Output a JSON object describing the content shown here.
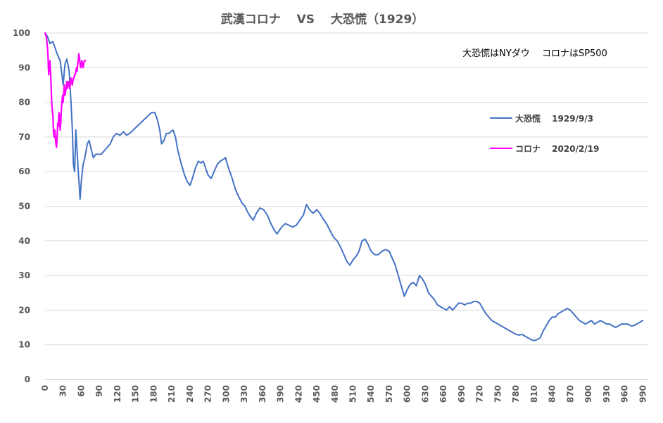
{
  "chart_data": {
    "type": "line",
    "title": "武漢コロナ　 VS　 大恐慌（1929）",
    "annotation": "大恐慌はNYダウ　 コロナはSP500",
    "xlabel": "",
    "ylabel": "",
    "xlim": [
      0,
      999
    ],
    "ylim": [
      0,
      100
    ],
    "y_ticks": [
      0,
      10,
      20,
      30,
      40,
      50,
      60,
      70,
      80,
      90,
      100
    ],
    "x_ticks": [
      0,
      30,
      60,
      90,
      120,
      150,
      180,
      210,
      240,
      270,
      300,
      330,
      360,
      390,
      420,
      450,
      480,
      510,
      540,
      570,
      600,
      630,
      660,
      690,
      720,
      750,
      780,
      810,
      840,
      870,
      900,
      930,
      960,
      990
    ],
    "grid": "horizontal",
    "legend_position": "right",
    "series": [
      {
        "name": "大恐慌　 1929/9/3",
        "color": "#4472C4",
        "points": [
          [
            0,
            100
          ],
          [
            4,
            99
          ],
          [
            8,
            97
          ],
          [
            13,
            97.5
          ],
          [
            16,
            96
          ],
          [
            20,
            94
          ],
          [
            25,
            92
          ],
          [
            28,
            88
          ],
          [
            30,
            85
          ],
          [
            33,
            91
          ],
          [
            36,
            92.5
          ],
          [
            40,
            89
          ],
          [
            43,
            80
          ],
          [
            45,
            73
          ],
          [
            47,
            62
          ],
          [
            49,
            60
          ],
          [
            51,
            72
          ],
          [
            53,
            66
          ],
          [
            55,
            60
          ],
          [
            57,
            55
          ],
          [
            58,
            52
          ],
          [
            60,
            57
          ],
          [
            63,
            62
          ],
          [
            66,
            64
          ],
          [
            70,
            68
          ],
          [
            73,
            69
          ],
          [
            77,
            66
          ],
          [
            80,
            64
          ],
          [
            84,
            65
          ],
          [
            88,
            65
          ],
          [
            93,
            65
          ],
          [
            98,
            66
          ],
          [
            103,
            67
          ],
          [
            108,
            68
          ],
          [
            113,
            70
          ],
          [
            118,
            71
          ],
          [
            124,
            70.5
          ],
          [
            130,
            71.5
          ],
          [
            135,
            70.5
          ],
          [
            140,
            71
          ],
          [
            146,
            72
          ],
          [
            152,
            73
          ],
          [
            158,
            74
          ],
          [
            164,
            75
          ],
          [
            170,
            76
          ],
          [
            176,
            77
          ],
          [
            182,
            77
          ],
          [
            186,
            75
          ],
          [
            190,
            72
          ],
          [
            193,
            68
          ],
          [
            197,
            69
          ],
          [
            201,
            71
          ],
          [
            205,
            71
          ],
          [
            208,
            71.5
          ],
          [
            212,
            72
          ],
          [
            216,
            70
          ],
          [
            220,
            66
          ],
          [
            226,
            62
          ],
          [
            231,
            59
          ],
          [
            236,
            57
          ],
          [
            240,
            56
          ],
          [
            244,
            58
          ],
          [
            249,
            61
          ],
          [
            254,
            63
          ],
          [
            258,
            62.5
          ],
          [
            262,
            63
          ],
          [
            266,
            61
          ],
          [
            270,
            59
          ],
          [
            275,
            58
          ],
          [
            280,
            60
          ],
          [
            285,
            62
          ],
          [
            290,
            63
          ],
          [
            295,
            63.5
          ],
          [
            299,
            64
          ],
          [
            302,
            62
          ],
          [
            306,
            60
          ],
          [
            310,
            58
          ],
          [
            315,
            55
          ],
          [
            320,
            53
          ],
          [
            326,
            51
          ],
          [
            331,
            50
          ],
          [
            335,
            48.5
          ],
          [
            340,
            47
          ],
          [
            345,
            46
          ],
          [
            350,
            48
          ],
          [
            356,
            49.5
          ],
          [
            362,
            49
          ],
          [
            368,
            47.5
          ],
          [
            374,
            45
          ],
          [
            380,
            43
          ],
          [
            384,
            42
          ],
          [
            388,
            43
          ],
          [
            392,
            44
          ],
          [
            398,
            45
          ],
          [
            404,
            44.5
          ],
          [
            410,
            44
          ],
          [
            416,
            44.5
          ],
          [
            422,
            46
          ],
          [
            428,
            47.5
          ],
          [
            433,
            50.5
          ],
          [
            438,
            49
          ],
          [
            444,
            48
          ],
          [
            450,
            49
          ],
          [
            455,
            48
          ],
          [
            460,
            46.5
          ],
          [
            466,
            45
          ],
          [
            472,
            43
          ],
          [
            478,
            41
          ],
          [
            484,
            40
          ],
          [
            490,
            38
          ],
          [
            495,
            36
          ],
          [
            500,
            34
          ],
          [
            505,
            33
          ],
          [
            510,
            34.5
          ],
          [
            515,
            35.5
          ],
          [
            520,
            37
          ],
          [
            525,
            40
          ],
          [
            530,
            40.5
          ],
          [
            535,
            39
          ],
          [
            540,
            37
          ],
          [
            546,
            36
          ],
          [
            552,
            36
          ],
          [
            558,
            37
          ],
          [
            564,
            37.5
          ],
          [
            570,
            37
          ],
          [
            575,
            35
          ],
          [
            580,
            33
          ],
          [
            585,
            30
          ],
          [
            590,
            27
          ],
          [
            595,
            24
          ],
          [
            600,
            26
          ],
          [
            605,
            27.5
          ],
          [
            610,
            28
          ],
          [
            615,
            27
          ],
          [
            620,
            30
          ],
          [
            625,
            29
          ],
          [
            630,
            27.5
          ],
          [
            635,
            25
          ],
          [
            640,
            24
          ],
          [
            645,
            23
          ],
          [
            650,
            21.5
          ],
          [
            655,
            21
          ],
          [
            660,
            20.5
          ],
          [
            665,
            20
          ],
          [
            670,
            21
          ],
          [
            675,
            20
          ],
          [
            680,
            21
          ],
          [
            685,
            22
          ],
          [
            690,
            22
          ],
          [
            695,
            21.5
          ],
          [
            700,
            22
          ],
          [
            705,
            22
          ],
          [
            710,
            22.5
          ],
          [
            715,
            22.5
          ],
          [
            720,
            22
          ],
          [
            725,
            20.5
          ],
          [
            730,
            19
          ],
          [
            735,
            18
          ],
          [
            740,
            17
          ],
          [
            745,
            16.5
          ],
          [
            750,
            16
          ],
          [
            755,
            15.5
          ],
          [
            760,
            15
          ],
          [
            765,
            14.5
          ],
          [
            770,
            14
          ],
          [
            775,
            13.5
          ],
          [
            780,
            13
          ],
          [
            785,
            12.8
          ],
          [
            790,
            13
          ],
          [
            795,
            12.5
          ],
          [
            800,
            12
          ],
          [
            805,
            11.5
          ],
          [
            810,
            11.2
          ],
          [
            815,
            11.5
          ],
          [
            820,
            12
          ],
          [
            825,
            14
          ],
          [
            830,
            15.5
          ],
          [
            835,
            17
          ],
          [
            840,
            18
          ],
          [
            845,
            18
          ],
          [
            850,
            19
          ],
          [
            855,
            19.5
          ],
          [
            860,
            20
          ],
          [
            865,
            20.5
          ],
          [
            870,
            20
          ],
          [
            875,
            19
          ],
          [
            880,
            18
          ],
          [
            885,
            17
          ],
          [
            890,
            16.5
          ],
          [
            895,
            16
          ],
          [
            900,
            16.5
          ],
          [
            905,
            17
          ],
          [
            910,
            16
          ],
          [
            915,
            16.5
          ],
          [
            920,
            17
          ],
          [
            925,
            16.5
          ],
          [
            930,
            16
          ],
          [
            935,
            16
          ],
          [
            940,
            15.5
          ],
          [
            945,
            15
          ],
          [
            950,
            15.5
          ],
          [
            955,
            16
          ],
          [
            960,
            16
          ],
          [
            965,
            16
          ],
          [
            970,
            15.5
          ],
          [
            975,
            15.5
          ],
          [
            980,
            16
          ],
          [
            985,
            16.5
          ],
          [
            990,
            17
          ]
        ]
      },
      {
        "name": "コロナ　 2020/2/19",
        "color": "#FF00FF",
        "points": [
          [
            0,
            100
          ],
          [
            2,
            99
          ],
          [
            4,
            96
          ],
          [
            5,
            93
          ],
          [
            6,
            88
          ],
          [
            7,
            90
          ],
          [
            8,
            92
          ],
          [
            9,
            89
          ],
          [
            10,
            85
          ],
          [
            11,
            80
          ],
          [
            12,
            78
          ],
          [
            13,
            76
          ],
          [
            14,
            72
          ],
          [
            15,
            70
          ],
          [
            16,
            72
          ],
          [
            17,
            70
          ],
          [
            18,
            68
          ],
          [
            19,
            67
          ],
          [
            20,
            70
          ],
          [
            21,
            74
          ],
          [
            22,
            73
          ],
          [
            23,
            77
          ],
          [
            24,
            76
          ],
          [
            25,
            72
          ],
          [
            26,
            74
          ],
          [
            27,
            78
          ],
          [
            28,
            80
          ],
          [
            29,
            82
          ],
          [
            30,
            80
          ],
          [
            31,
            83
          ],
          [
            32,
            85
          ],
          [
            33,
            82
          ],
          [
            34,
            83
          ],
          [
            35,
            84
          ],
          [
            36,
            86
          ],
          [
            37,
            84
          ],
          [
            38,
            85
          ],
          [
            39,
            86
          ],
          [
            40,
            85
          ],
          [
            41,
            84
          ],
          [
            42,
            86
          ],
          [
            43,
            87
          ],
          [
            44,
            86
          ],
          [
            45,
            85
          ],
          [
            46,
            86
          ],
          [
            47,
            87
          ],
          [
            48,
            87
          ],
          [
            49,
            88
          ],
          [
            50,
            88
          ],
          [
            51,
            89
          ],
          [
            52,
            90
          ],
          [
            53,
            89
          ],
          [
            54,
            91
          ],
          [
            55,
            92
          ],
          [
            56,
            94
          ],
          [
            57,
            93
          ],
          [
            58,
            91
          ],
          [
            59,
            90
          ],
          [
            60,
            91
          ],
          [
            61,
            92
          ],
          [
            62,
            91
          ],
          [
            63,
            90
          ],
          [
            64,
            91
          ],
          [
            65,
            92
          ],
          [
            66,
            92
          ],
          [
            67,
            92
          ]
        ]
      }
    ]
  }
}
